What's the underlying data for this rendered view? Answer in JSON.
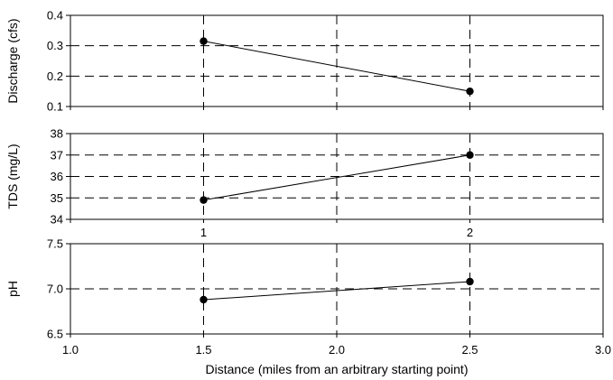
{
  "chart_data": [
    {
      "type": "line",
      "ylabel": "Discharge (cfs)",
      "ylim": [
        0.1,
        0.4
      ],
      "yticks": [
        "0.1",
        "0.2",
        "0.3",
        "0.4"
      ],
      "xlim": [
        1.0,
        3.0
      ],
      "grid": true,
      "series": [
        {
          "x": [
            1.5,
            2.5
          ],
          "y": [
            0.315,
            0.15
          ]
        }
      ]
    },
    {
      "type": "line",
      "ylabel": "TDS  (mg/L)",
      "ylim": [
        34,
        38
      ],
      "yticks": [
        "34",
        "35",
        "36",
        "37",
        "38"
      ],
      "xlim": [
        1.0,
        3.0
      ],
      "grid": true,
      "x_tick_labels": [
        {
          "x": 1.5,
          "label": "1"
        },
        {
          "x": 2.5,
          "label": "2"
        }
      ],
      "series": [
        {
          "x": [
            1.5,
            2.5
          ],
          "y": [
            34.9,
            37.0
          ]
        }
      ]
    },
    {
      "type": "line",
      "ylabel": "pH",
      "ylim": [
        6.5,
        7.5
      ],
      "yticks": [
        "6.5",
        "7.0",
        "7.5"
      ],
      "xlim": [
        1.0,
        3.0
      ],
      "xticks": [
        "1.0",
        "1.5",
        "2.0",
        "2.5",
        "3.0"
      ],
      "xlabel": "Distance (miles from an arbitrary starting point)",
      "grid": true,
      "series": [
        {
          "x": [
            1.5,
            2.5
          ],
          "y": [
            6.88,
            7.08
          ]
        }
      ]
    }
  ]
}
